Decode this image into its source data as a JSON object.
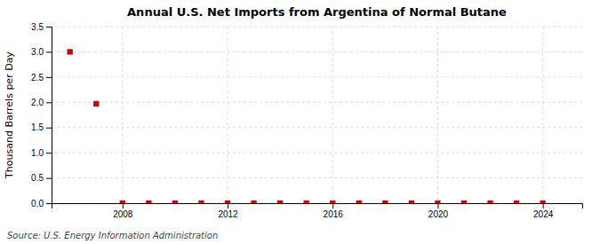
{
  "chart_data": {
    "type": "scatter",
    "title": "Annual U.S. Net Imports from Argentina of Normal Butane",
    "ylabel": "Thousand Barrels per Day",
    "source": "Source: U.S. Energy Information Administration",
    "x": [
      2006,
      2007,
      2008,
      2009,
      2010,
      2011,
      2012,
      2013,
      2014,
      2015,
      2016,
      2017,
      2018,
      2019,
      2020,
      2021,
      2022,
      2023,
      2024
    ],
    "values": [
      3.0,
      1.97,
      0.0,
      0.0,
      0.0,
      0.0,
      0.0,
      0.0,
      0.0,
      0.0,
      0.0,
      0.0,
      0.0,
      0.0,
      0.0,
      0.0,
      0.0,
      0.0,
      0.0
    ],
    "color": "#cc0000",
    "marker": "square",
    "xlim": [
      2005.3,
      2025.5
    ],
    "xticks": [
      2008,
      2012,
      2016,
      2020,
      2024
    ],
    "ylim": [
      0,
      3.5
    ],
    "yticks": [
      {
        "value": 0,
        "label": "0.0"
      },
      0.5,
      {
        "value": 1,
        "label": "1.0"
      },
      1.5,
      {
        "value": 2,
        "label": "2.0"
      },
      2.5,
      {
        "value": 3,
        "label": "3.0"
      },
      3.5
    ],
    "grid": true
  }
}
